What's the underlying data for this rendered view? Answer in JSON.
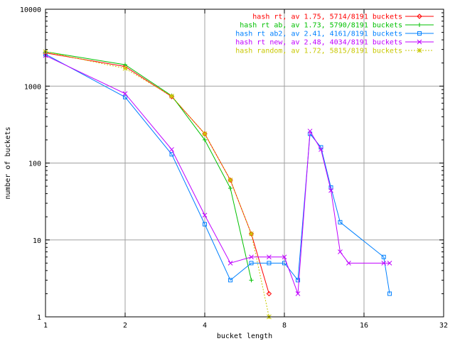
{
  "chart_data": {
    "type": "line",
    "title": "",
    "xlabel": "bucket length",
    "ylabel": "number of buckets",
    "x_scale": "log2",
    "y_scale": "log10",
    "xlim": [
      1,
      32
    ],
    "ylim": [
      1,
      10000
    ],
    "x_ticks": [
      1,
      2,
      4,
      8,
      16,
      32
    ],
    "y_ticks": [
      1,
      10,
      100,
      1000,
      10000
    ],
    "x_tick_labels": [
      "1",
      "2",
      "4",
      "8",
      "16",
      "32"
    ],
    "y_tick_labels": [
      "1",
      "10",
      "100",
      "1000",
      "10000"
    ],
    "grid": true,
    "legend_position": "top-right",
    "series": [
      {
        "name": "hash rt, av 1.75, 5714/8191 buckets",
        "color": "#ff0000",
        "marker": "diamond",
        "dashed": false,
        "points": [
          [
            1,
            2700
          ],
          [
            2,
            1800
          ],
          [
            3,
            730
          ],
          [
            4,
            240
          ],
          [
            5,
            60
          ],
          [
            6,
            12
          ],
          [
            7,
            2
          ]
        ]
      },
      {
        "name": "hash rt ab, av 1.73, 5790/8191 buckets",
        "color": "#00c000",
        "marker": "plus",
        "dashed": false,
        "points": [
          [
            1,
            2800
          ],
          [
            2,
            1900
          ],
          [
            3,
            750
          ],
          [
            4,
            200
          ],
          [
            5,
            47
          ],
          [
            6,
            3
          ]
        ]
      },
      {
        "name": "hash rt ab2, av 2.41, 4161/8191 buckets",
        "color": "#0080ff",
        "marker": "square",
        "dashed": false,
        "points": [
          [
            1,
            2600
          ],
          [
            2,
            720
          ],
          [
            3,
            130
          ],
          [
            4,
            16
          ],
          [
            5,
            3
          ],
          [
            6,
            5
          ],
          [
            7,
            5
          ],
          [
            8,
            5
          ],
          [
            9,
            3
          ],
          [
            10,
            240
          ],
          [
            11,
            160
          ],
          [
            12,
            48
          ],
          [
            13,
            17
          ],
          [
            19,
            6
          ],
          [
            20,
            2
          ]
        ]
      },
      {
        "name": "hash rt new, av 2.48, 4034/8191 buckets",
        "color": "#c000ff",
        "marker": "x",
        "dashed": false,
        "points": [
          [
            1,
            2500
          ],
          [
            2,
            800
          ],
          [
            3,
            150
          ],
          [
            4,
            21
          ],
          [
            5,
            5
          ],
          [
            6,
            6
          ],
          [
            7,
            6
          ],
          [
            8,
            6
          ],
          [
            9,
            2
          ],
          [
            10,
            260
          ],
          [
            11,
            150
          ],
          [
            12,
            44
          ],
          [
            13,
            7
          ],
          [
            14,
            5
          ],
          [
            19,
            5
          ],
          [
            20,
            5
          ]
        ]
      },
      {
        "name": "hash random, av 1.72, 5815/8191 buckets",
        "color": "#c8c800",
        "marker": "star",
        "dashed": true,
        "points": [
          [
            1,
            2800
          ],
          [
            2,
            1700
          ],
          [
            3,
            740
          ],
          [
            4,
            240
          ],
          [
            5,
            60
          ],
          [
            6,
            12
          ],
          [
            7,
            1
          ]
        ]
      }
    ]
  }
}
